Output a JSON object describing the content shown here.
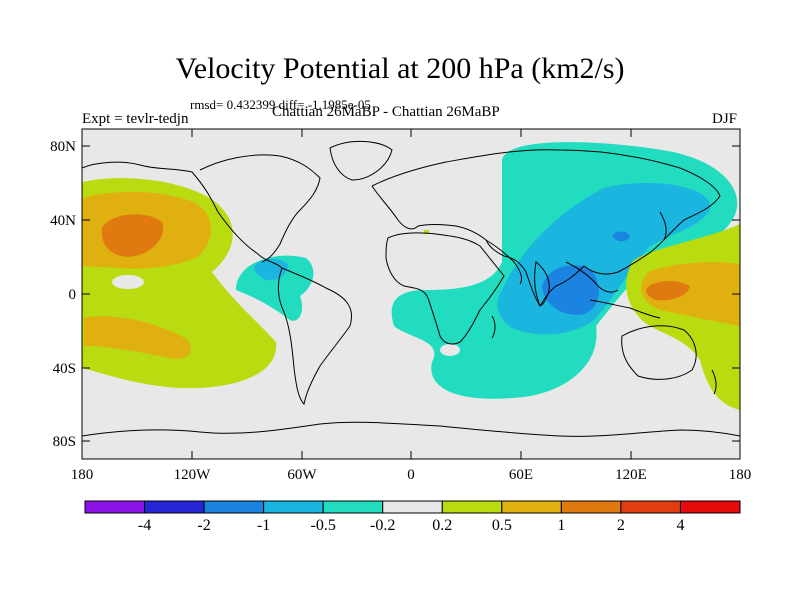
{
  "title": "Velocity Potential at 200 hPa (km2/s)",
  "stats": "rmsd= 0.432399 diff= -1.1985e-05",
  "expt": "Expt = tevlr-tedjn",
  "subtitle": "Chattian  26MaBP - Chattian  26MaBP",
  "season": "DJF",
  "axes": {
    "x_labels": [
      "180",
      "120W",
      "60W",
      "0",
      "60E",
      "120E",
      "180"
    ],
    "y_labels": [
      "80N",
      "40N",
      "0",
      "40S",
      "80S"
    ]
  },
  "legend": {
    "labels": [
      "-4",
      "-2",
      "-1",
      "-0.5",
      "-0.2",
      "0.2",
      "0.5",
      "1",
      "2",
      "4"
    ],
    "colors": [
      "#8a14e6",
      "#2626d6",
      "#1a84e0",
      "#1ab6e0",
      "#22dcc0",
      "#e8e8e8",
      "#b8dc10",
      "#e0b010",
      "#e07a10",
      "#e03e10",
      "#e60a0a"
    ]
  },
  "colors": {
    "land_mask": "#e8e8e8",
    "coastline": "#000000"
  }
}
